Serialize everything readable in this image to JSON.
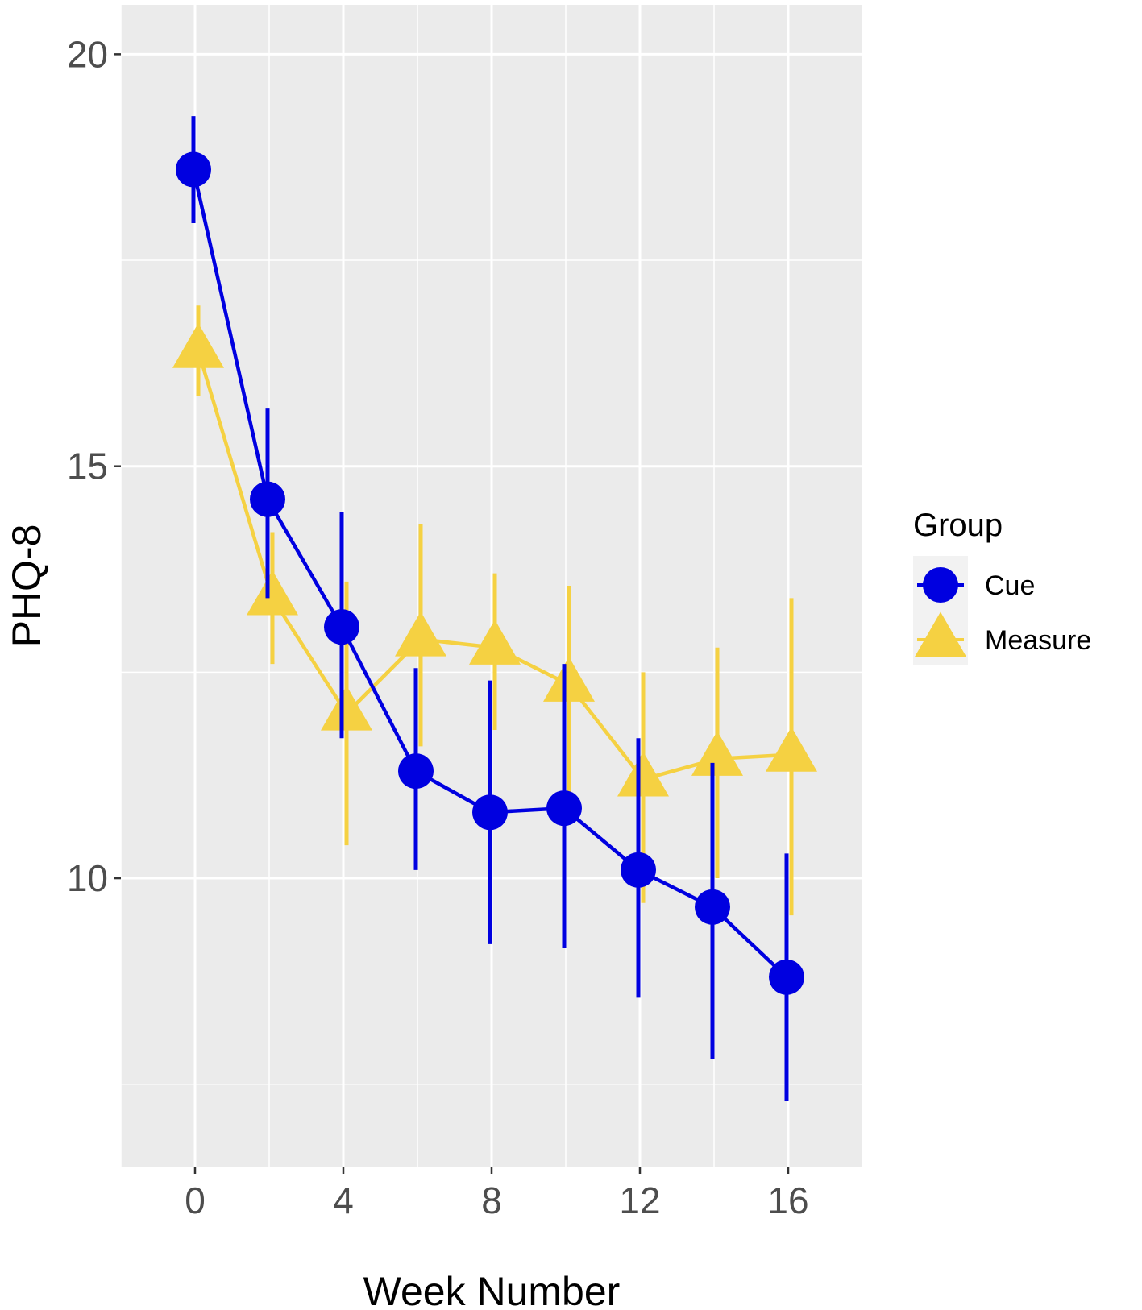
{
  "chart_data": {
    "type": "line",
    "xlabel": "Week Number",
    "ylabel": "PHQ-8",
    "xlim": [
      -2,
      18
    ],
    "ylim": [
      6.5,
      20.6
    ],
    "x_ticks": [
      0,
      4,
      8,
      12,
      16
    ],
    "x_tick_labels": [
      "0",
      "4",
      "8",
      "12",
      "16"
    ],
    "y_ticks": [
      10,
      15,
      20
    ],
    "y_tick_labels": [
      "10",
      "15",
      "20"
    ],
    "grid": true,
    "legend": {
      "title": "Group",
      "position": "right"
    },
    "series": [
      {
        "name": "Cue",
        "color": "#0000e0",
        "marker": "circle",
        "points": [
          {
            "x": 0,
            "y": 18.6,
            "lo": 17.95,
            "hi": 19.25
          },
          {
            "x": 2,
            "y": 14.6,
            "lo": 13.4,
            "hi": 15.7
          },
          {
            "x": 4,
            "y": 13.05,
            "lo": 11.7,
            "hi": 14.45
          },
          {
            "x": 6,
            "y": 11.3,
            "lo": 10.1,
            "hi": 12.55
          },
          {
            "x": 8,
            "y": 10.8,
            "lo": 9.2,
            "hi": 12.4
          },
          {
            "x": 10,
            "y": 10.85,
            "lo": 9.15,
            "hi": 12.6
          },
          {
            "x": 12,
            "y": 10.1,
            "lo": 8.55,
            "hi": 11.7
          },
          {
            "x": 14,
            "y": 9.65,
            "lo": 7.8,
            "hi": 11.4
          },
          {
            "x": 16,
            "y": 8.8,
            "lo": 7.3,
            "hi": 10.3
          }
        ]
      },
      {
        "name": "Measure",
        "color": "#f5d142",
        "marker": "triangle",
        "points": [
          {
            "x": 0,
            "y": 16.4,
            "lo": 15.85,
            "hi": 16.95
          },
          {
            "x": 2,
            "y": 13.4,
            "lo": 12.6,
            "hi": 14.2
          },
          {
            "x": 4,
            "y": 12.0,
            "lo": 10.4,
            "hi": 13.6
          },
          {
            "x": 6,
            "y": 12.9,
            "lo": 11.6,
            "hi": 14.3
          },
          {
            "x": 8,
            "y": 12.8,
            "lo": 11.8,
            "hi": 13.7
          },
          {
            "x": 10,
            "y": 12.35,
            "lo": 11.0,
            "hi": 13.55
          },
          {
            "x": 12,
            "y": 11.2,
            "lo": 9.7,
            "hi": 12.5
          },
          {
            "x": 14,
            "y": 11.45,
            "lo": 10.0,
            "hi": 12.8
          },
          {
            "x": 16,
            "y": 11.5,
            "lo": 9.55,
            "hi": 13.4
          }
        ]
      }
    ]
  }
}
